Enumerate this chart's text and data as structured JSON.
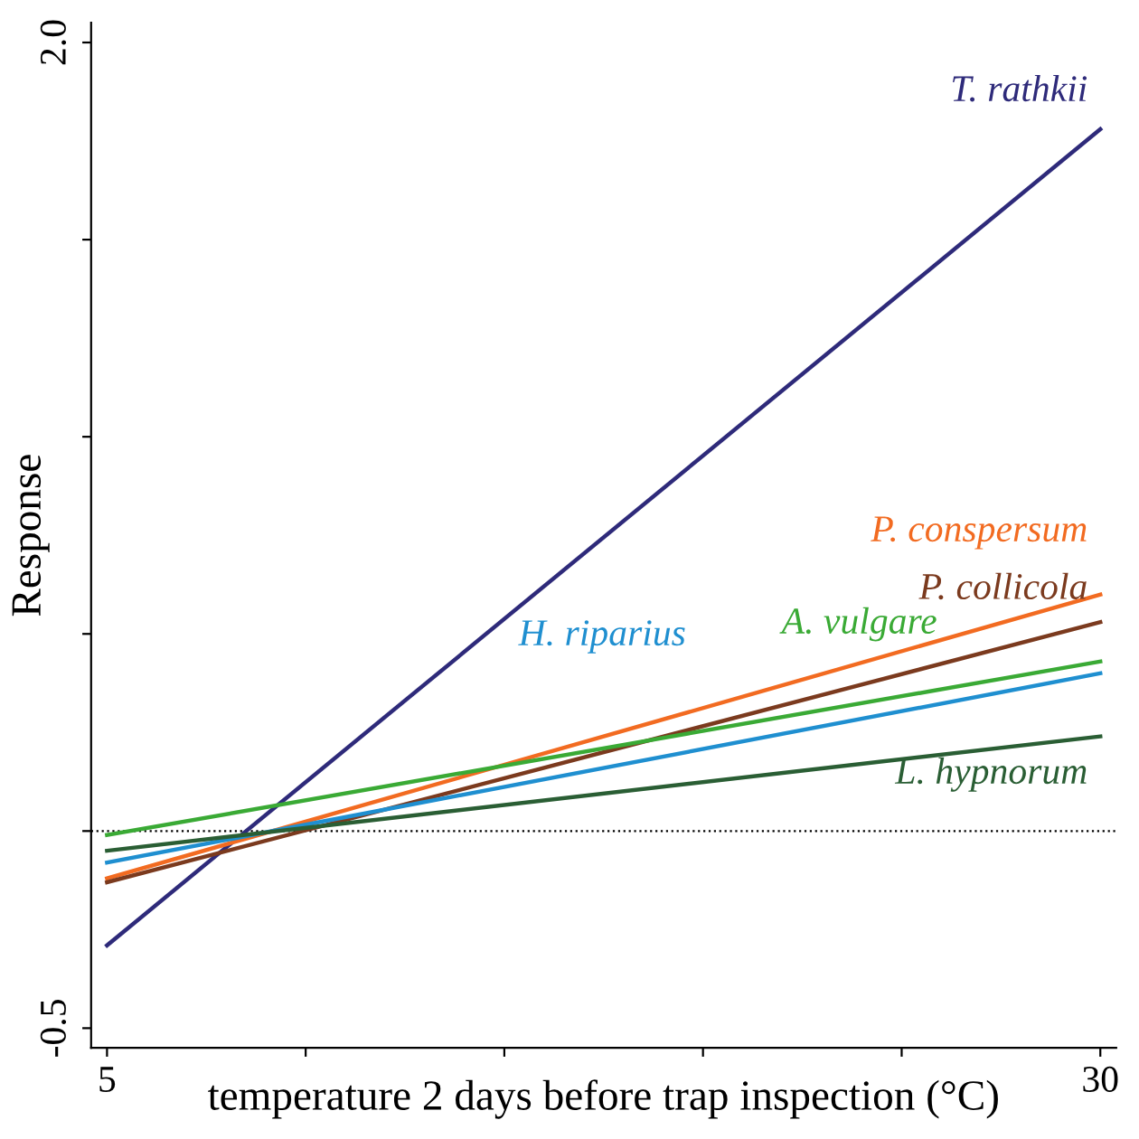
{
  "chart_data": {
    "type": "line",
    "xlabel": "temperature 2 days before trap inspection (°C)",
    "ylabel": "Response",
    "x": [
      5,
      30
    ],
    "series": [
      {
        "name": "T. rathkii",
        "color": "#2e2a7a",
        "values": [
          -0.29,
          1.78
        ]
      },
      {
        "name": "P. conspersum",
        "color": "#f26b21",
        "values": [
          -0.12,
          0.6
        ]
      },
      {
        "name": "P. collicola",
        "color": "#7b3a1e",
        "values": [
          -0.13,
          0.53
        ]
      },
      {
        "name": "A. vulgare",
        "color": "#3aaa35",
        "values": [
          -0.01,
          0.43
        ]
      },
      {
        "name": "H. riparius",
        "color": "#1f8fd0",
        "values": [
          -0.08,
          0.4
        ]
      },
      {
        "name": "L. hypnorum",
        "color": "#2a5e34",
        "values": [
          -0.05,
          0.24
        ]
      }
    ],
    "xlim": [
      4.6,
      30.4
    ],
    "ylim": [
      -0.55,
      2.05
    ],
    "xticks": [
      5,
      {
        "value": 10,
        "label": null
      },
      {
        "value": 15,
        "label": null
      },
      {
        "value": 20,
        "label": null
      },
      {
        "value": 25,
        "label": null
      },
      30
    ],
    "yticks": [
      {
        "value": -0.5,
        "label": "-0.5"
      },
      {
        "value": 0,
        "label": null
      },
      {
        "value": 0.5,
        "label": null
      },
      {
        "value": 1.0,
        "label": null
      },
      {
        "value": 1.5,
        "label": null
      },
      {
        "value": 2.0,
        "label": "2.0"
      }
    ],
    "ref_lines": [
      {
        "axis": "y",
        "value": 0,
        "label": null,
        "color": "#000000",
        "line_style": "dotted"
      }
    ],
    "legend": false,
    "grid": false
  }
}
